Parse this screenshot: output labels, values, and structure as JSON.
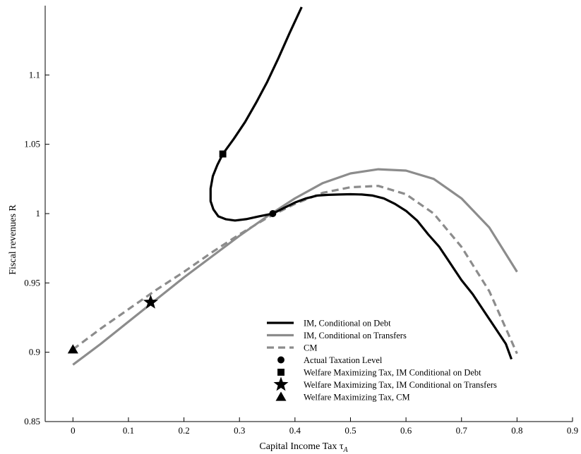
{
  "chart_data": {
    "type": "line",
    "xlabel": "Capital Income Tax τ",
    "xlabel_sub": "A",
    "ylabel": "Fiscal revenues R",
    "xlim": [
      -0.05,
      0.9
    ],
    "ylim": [
      0.85,
      1.15
    ],
    "xticks": [
      0,
      0.1,
      0.2,
      0.3,
      0.4,
      0.5,
      0.6,
      0.7,
      0.8,
      0.9
    ],
    "xtick_labels": [
      "0",
      "0.1",
      "0.2",
      "0.3",
      "0.4",
      "0.5",
      "0.6",
      "0.7",
      "0.8",
      "0.9"
    ],
    "yticks": [
      0.85,
      0.9,
      0.95,
      1.0,
      1.05,
      1.1
    ],
    "ytick_labels": [
      "0.85",
      "0.9",
      "0.95",
      "1",
      "1.05",
      "1.1"
    ],
    "grid": false,
    "legend_position": "bottom-right",
    "series": [
      {
        "name": "IM, Conditional on Debt",
        "color": "#000000",
        "style": "solid",
        "x": [
          0.412,
          0.39,
          0.37,
          0.35,
          0.33,
          0.31,
          0.29,
          0.27,
          0.26,
          0.252,
          0.248,
          0.248,
          0.253,
          0.262,
          0.275,
          0.292,
          0.312,
          0.335,
          0.36,
          0.38,
          0.4,
          0.42,
          0.44,
          0.46,
          0.48,
          0.5,
          0.52,
          0.54,
          0.56,
          0.58,
          0.6,
          0.62,
          0.64,
          0.66,
          0.68,
          0.7,
          0.72,
          0.74,
          0.76,
          0.78,
          0.79
        ],
        "y": [
          1.149,
          1.13,
          1.112,
          1.095,
          1.08,
          1.066,
          1.054,
          1.043,
          1.035,
          1.027,
          1.018,
          1.009,
          1.003,
          0.998,
          0.996,
          0.995,
          0.996,
          0.998,
          1.0,
          1.004,
          1.008,
          1.011,
          1.013,
          1.0135,
          1.0138,
          1.014,
          1.0138,
          1.013,
          1.011,
          1.007,
          1.002,
          0.995,
          0.985,
          0.976,
          0.964,
          0.952,
          0.942,
          0.93,
          0.918,
          0.906,
          0.895
        ]
      },
      {
        "name": "IM, Conditional on Transfers",
        "color": "#8c8c8c",
        "style": "solid",
        "x": [
          0.0,
          0.05,
          0.1,
          0.15,
          0.2,
          0.25,
          0.3,
          0.35,
          0.4,
          0.45,
          0.5,
          0.55,
          0.6,
          0.65,
          0.7,
          0.75,
          0.8
        ],
        "y": [
          0.891,
          0.906,
          0.922,
          0.938,
          0.954,
          0.969,
          0.984,
          0.998,
          1.011,
          1.022,
          1.029,
          1.032,
          1.031,
          1.025,
          1.011,
          0.99,
          0.958
        ]
      },
      {
        "name": "CM",
        "color": "#8c8c8c",
        "style": "dashed",
        "x": [
          0.0,
          0.05,
          0.1,
          0.15,
          0.2,
          0.25,
          0.3,
          0.35,
          0.4,
          0.45,
          0.5,
          0.55,
          0.6,
          0.65,
          0.7,
          0.75,
          0.8
        ],
        "y": [
          0.902,
          0.917,
          0.931,
          0.945,
          0.958,
          0.972,
          0.985,
          0.997,
          1.007,
          1.015,
          1.019,
          1.02,
          1.014,
          1.0,
          0.976,
          0.944,
          0.899
        ]
      }
    ],
    "markers": [
      {
        "name": "Actual Taxation Level",
        "shape": "circle",
        "x": 0.36,
        "y": 1.0
      },
      {
        "name": "Welfare Maximizing Tax, IM Conditional on Debt",
        "shape": "square",
        "x": 0.27,
        "y": 1.043
      },
      {
        "name": "Welfare Maximizing Tax, IM Conditional on Transfers",
        "shape": "star",
        "x": 0.14,
        "y": 0.936
      },
      {
        "name": "Welfare Maximizing Tax, CM",
        "shape": "triangle",
        "x": 0.0,
        "y": 0.902
      }
    ]
  }
}
